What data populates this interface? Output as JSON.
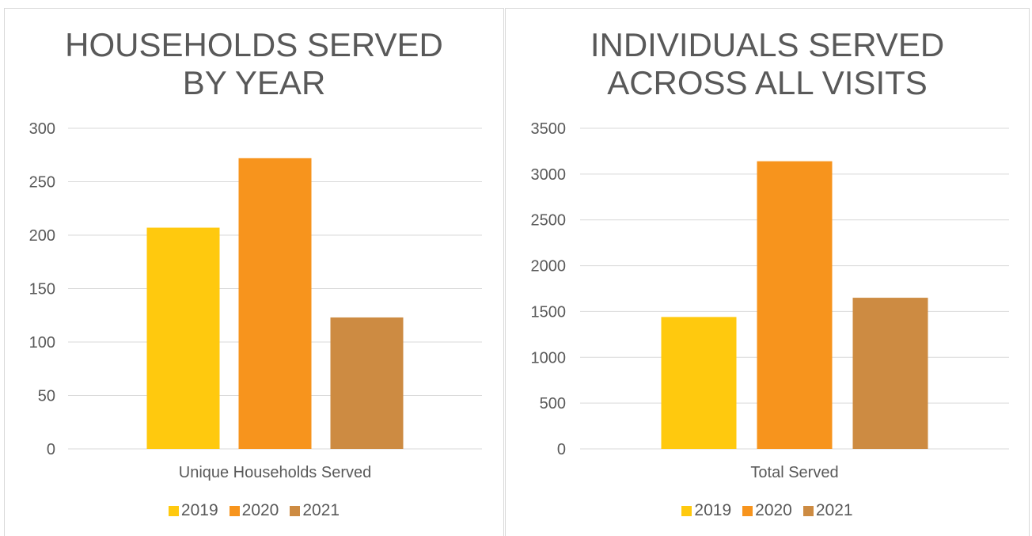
{
  "chart_data": [
    {
      "type": "bar",
      "title_lines": [
        "HOUSEHOLDS SERVED",
        "BY YEAR"
      ],
      "categories": [
        "Unique Households Served"
      ],
      "series": [
        {
          "name": "2019",
          "values": [
            207
          ],
          "color": "#FFC90E"
        },
        {
          "name": "2020",
          "values": [
            272
          ],
          "color": "#F7941D"
        },
        {
          "name": "2021",
          "values": [
            123
          ],
          "color": "#CD8B42"
        }
      ],
      "ylim": [
        0,
        300
      ],
      "yticks": [
        0,
        50,
        100,
        150,
        200,
        250,
        300
      ],
      "grid": true,
      "legend_position": "bottom"
    },
    {
      "type": "bar",
      "title_lines": [
        "INDIVIDUALS SERVED",
        "ACROSS ALL VISITS"
      ],
      "categories": [
        "Total Served"
      ],
      "series": [
        {
          "name": "2019",
          "values": [
            1440
          ],
          "color": "#FFC90E"
        },
        {
          "name": "2020",
          "values": [
            3140
          ],
          "color": "#F7941D"
        },
        {
          "name": "2021",
          "values": [
            1650
          ],
          "color": "#CD8B42"
        }
      ],
      "ylim": [
        0,
        3500
      ],
      "yticks": [
        0,
        500,
        1000,
        1500,
        2000,
        2500,
        3000,
        3500
      ],
      "grid": true,
      "legend_position": "bottom"
    }
  ]
}
